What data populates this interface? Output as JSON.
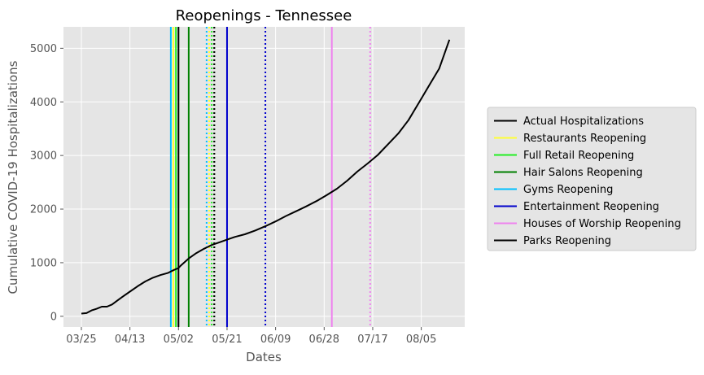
{
  "chart_data": {
    "type": "line",
    "title": "Reopenings - Tennessee",
    "xlabel": "Dates",
    "ylabel": "Cumulative COVID-19 Hospitalizations",
    "xticks": [
      "03/25",
      "04/13",
      "05/02",
      "05/21",
      "06/09",
      "06/28",
      "07/17",
      "08/05"
    ],
    "yticks": [
      0,
      1000,
      2000,
      3000,
      4000,
      5000
    ],
    "xlim": [
      "2020-03-18",
      "2020-08-22"
    ],
    "ylim": [
      -200,
      5400
    ],
    "grid": true,
    "legend_position": "right",
    "background": "#e5e5e5",
    "series": [
      {
        "name": "Actual Hospitalizations",
        "color": "#000000",
        "x": [
          "2020-03-25",
          "2020-03-27",
          "2020-03-29",
          "2020-03-31",
          "2020-04-02",
          "2020-04-04",
          "2020-04-06",
          "2020-04-08",
          "2020-04-10",
          "2020-04-13",
          "2020-04-16",
          "2020-04-19",
          "2020-04-22",
          "2020-04-25",
          "2020-04-28",
          "2020-04-30",
          "2020-05-02",
          "2020-05-03",
          "2020-05-06",
          "2020-05-09",
          "2020-05-12",
          "2020-05-15",
          "2020-05-18",
          "2020-05-21",
          "2020-05-24",
          "2020-05-28",
          "2020-06-01",
          "2020-06-05",
          "2020-06-09",
          "2020-06-13",
          "2020-06-17",
          "2020-06-21",
          "2020-06-25",
          "2020-06-29",
          "2020-07-03",
          "2020-07-07",
          "2020-07-11",
          "2020-07-15",
          "2020-07-19",
          "2020-07-23",
          "2020-07-27",
          "2020-07-31",
          "2020-08-04",
          "2020-08-08",
          "2020-08-12",
          "2020-08-16"
        ],
        "y": [
          50,
          60,
          110,
          140,
          180,
          180,
          220,
          290,
          360,
          460,
          560,
          650,
          720,
          770,
          810,
          860,
          900,
          950,
          1080,
          1180,
          1260,
          1330,
          1380,
          1430,
          1480,
          1530,
          1600,
          1680,
          1770,
          1870,
          1960,
          2050,
          2150,
          2260,
          2380,
          2530,
          2700,
          2850,
          3010,
          3210,
          3410,
          3660,
          3980,
          4300,
          4620,
          5160
        ]
      }
    ],
    "vlines": [
      {
        "name": "Restaurants Reopening",
        "color": "#ffff33",
        "style": "solid",
        "date": "2020-04-30"
      },
      {
        "name": "Restaurants Reopening",
        "color": "#ffff33",
        "style": "dotted",
        "date": "2020-05-14"
      },
      {
        "name": "Full Retail Reopening",
        "color": "#22ee22",
        "style": "solid",
        "date": "2020-05-01"
      },
      {
        "name": "Full Retail Reopening",
        "color": "#22ee22",
        "style": "dotted",
        "date": "2020-05-15"
      },
      {
        "name": "Hair Salons Reopening",
        "color": "#008000",
        "style": "solid",
        "date": "2020-05-06"
      },
      {
        "name": "Hair Salons Reopening",
        "color": "#008000",
        "style": "dotted",
        "date": "2020-05-16"
      },
      {
        "name": "Gyms Reopening",
        "color": "#00bfff",
        "style": "solid",
        "date": "2020-04-29"
      },
      {
        "name": "Gyms Reopening",
        "color": "#00bfff",
        "style": "dotted",
        "date": "2020-05-13"
      },
      {
        "name": "Entertainment Reopening",
        "color": "#0000cc",
        "style": "solid",
        "date": "2020-05-21"
      },
      {
        "name": "Entertainment Reopening",
        "color": "#0000cc",
        "style": "dotted",
        "date": "2020-06-05"
      },
      {
        "name": "Houses of Worship Reopening",
        "color": "#ee82ee",
        "style": "solid",
        "date": "2020-07-01"
      },
      {
        "name": "Houses of Worship Reopening",
        "color": "#ee82ee",
        "style": "dotted",
        "date": "2020-07-16"
      },
      {
        "name": "Parks Reopening",
        "color": "#000000",
        "style": "solid",
        "date": "2020-05-02"
      },
      {
        "name": "Parks Reopening",
        "color": "#000000",
        "style": "dotted",
        "date": "2020-05-16"
      }
    ],
    "legend": [
      {
        "label": "Actual Hospitalizations",
        "color": "#000000"
      },
      {
        "label": "Restaurants Reopening",
        "color": "#ffff33"
      },
      {
        "label": "Full Retail Reopening",
        "color": "#22ee22"
      },
      {
        "label": "Hair Salons Reopening",
        "color": "#008000"
      },
      {
        "label": "Gyms Reopening",
        "color": "#00bfff"
      },
      {
        "label": "Entertainment Reopening",
        "color": "#0000cc"
      },
      {
        "label": "Houses of Worship Reopening",
        "color": "#ee82ee"
      },
      {
        "label": "Parks Reopening",
        "color": "#000000"
      }
    ]
  }
}
